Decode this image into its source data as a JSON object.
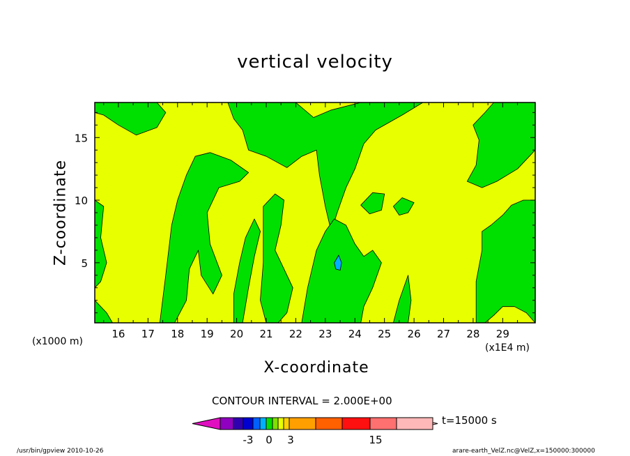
{
  "chart_data": {
    "type": "heatmap",
    "title": "vertical velocity",
    "xlabel": "X-coordinate",
    "ylabel": "Z-coordinate",
    "x_unit_left": "(x1000 m)",
    "x_unit_right": "(x1E4 m)",
    "xlim": [
      15.2,
      30.1
    ],
    "ylim": [
      0.2,
      17.8
    ],
    "x_ticks": [
      16,
      17,
      18,
      19,
      20,
      21,
      22,
      23,
      24,
      25,
      26,
      27,
      28,
      29
    ],
    "y_ticks": [
      5,
      10,
      15
    ],
    "contour_interval": "CONTOUR INTERVAL = 2.000E+00",
    "time_label": "t=15000 s",
    "colorbar": {
      "labels": [
        {
          "text": "-3",
          "level": -3
        },
        {
          "text": "0",
          "level": 0
        },
        {
          "text": "3",
          "level": 3
        },
        {
          "text": "15",
          "level": 15
        }
      ],
      "bins": [
        {
          "color": "#9000c0"
        },
        {
          "color": "#3000b0"
        },
        {
          "color": "#0000d0"
        },
        {
          "color": "#0060ff"
        },
        {
          "color": "#00b0ff"
        },
        {
          "color": "#00e000"
        },
        {
          "color": "#80e000"
        },
        {
          "color": "#e8ff00"
        },
        {
          "color": "#ffd000"
        },
        {
          "color": "#ffa000"
        },
        {
          "color": "#ff6000"
        },
        {
          "color": "#ff1010"
        },
        {
          "color": "#ff7070"
        },
        {
          "color": "#ffb8b8"
        }
      ],
      "left_arrow_color": "#e010c0",
      "right_arrow_color": "#ffd8d8"
    },
    "fields": {
      "background_color": "#e8ff00",
      "positive_color": "#00e000",
      "updraft_color": "#00b0ff",
      "downdraft_color": "#ffd000"
    },
    "green_regions": [
      [
        [
          15.2,
          17.8
        ],
        [
          17.3,
          17.8
        ],
        [
          17.6,
          17.0
        ],
        [
          17.3,
          15.8
        ],
        [
          16.6,
          15.2
        ],
        [
          16.0,
          16.0
        ],
        [
          15.5,
          16.8
        ],
        [
          15.2,
          17.0
        ]
      ],
      [
        [
          19.7,
          17.8
        ],
        [
          22.0,
          17.8
        ],
        [
          22.6,
          16.6
        ],
        [
          23.2,
          17.2
        ],
        [
          24.2,
          17.8
        ],
        [
          26.3,
          17.8
        ],
        [
          25.6,
          16.8
        ],
        [
          24.7,
          15.6
        ],
        [
          24.3,
          14.5
        ],
        [
          24.0,
          12.5
        ],
        [
          23.7,
          11.0
        ],
        [
          23.4,
          9.0
        ],
        [
          23.2,
          7.5
        ],
        [
          23.0,
          9.5
        ],
        [
          22.8,
          12.0
        ],
        [
          22.7,
          14.0
        ],
        [
          22.2,
          13.5
        ],
        [
          21.7,
          12.6
        ],
        [
          21.0,
          13.5
        ],
        [
          20.4,
          14.0
        ],
        [
          20.2,
          15.6
        ],
        [
          19.9,
          16.5
        ]
      ],
      [
        [
          15.2,
          10.0
        ],
        [
          15.5,
          9.5
        ],
        [
          15.4,
          7.0
        ],
        [
          15.6,
          5.0
        ],
        [
          15.4,
          3.5
        ],
        [
          15.2,
          3.0
        ]
      ],
      [
        [
          15.2,
          2.0
        ],
        [
          15.6,
          1.0
        ],
        [
          15.8,
          0.2
        ],
        [
          15.2,
          0.2
        ]
      ],
      [
        [
          17.4,
          0.2
        ],
        [
          17.6,
          4.0
        ],
        [
          17.8,
          8.0
        ],
        [
          18.0,
          10.0
        ],
        [
          18.3,
          12.0
        ],
        [
          18.6,
          13.5
        ],
        [
          19.1,
          13.8
        ],
        [
          19.8,
          13.2
        ],
        [
          20.4,
          12.2
        ],
        [
          20.1,
          11.5
        ],
        [
          19.4,
          11.0
        ],
        [
          19.0,
          9.0
        ],
        [
          19.1,
          6.5
        ],
        [
          19.5,
          4.0
        ],
        [
          19.2,
          2.5
        ],
        [
          18.8,
          4.0
        ],
        [
          18.7,
          6.0
        ],
        [
          18.4,
          4.5
        ],
        [
          18.3,
          2.0
        ],
        [
          17.9,
          0.2
        ]
      ],
      [
        [
          20.1,
          5.0
        ],
        [
          20.3,
          7.0
        ],
        [
          20.6,
          8.5
        ],
        [
          20.8,
          7.5
        ],
        [
          20.6,
          5.5
        ],
        [
          20.4,
          3.0
        ],
        [
          20.2,
          0.2
        ],
        [
          19.9,
          0.2
        ],
        [
          19.9,
          2.5
        ]
      ],
      [
        [
          20.9,
          9.5
        ],
        [
          21.3,
          10.5
        ],
        [
          21.6,
          10.0
        ],
        [
          21.5,
          8.0
        ],
        [
          21.3,
          6.0
        ],
        [
          21.6,
          4.5
        ],
        [
          21.9,
          3.0
        ],
        [
          21.7,
          1.0
        ],
        [
          21.4,
          0.2
        ],
        [
          21.0,
          0.2
        ],
        [
          20.8,
          2.0
        ],
        [
          20.9,
          5.0
        ]
      ],
      [
        [
          22.2,
          0.2
        ],
        [
          22.4,
          3.0
        ],
        [
          22.7,
          6.0
        ],
        [
          23.0,
          7.5
        ],
        [
          23.3,
          8.5
        ],
        [
          23.7,
          8.0
        ],
        [
          24.0,
          6.5
        ],
        [
          24.3,
          5.5
        ],
        [
          24.6,
          6.0
        ],
        [
          24.9,
          5.0
        ],
        [
          24.6,
          3.0
        ],
        [
          24.3,
          1.5
        ],
        [
          24.2,
          0.2
        ]
      ],
      [
        [
          25.3,
          0.2
        ],
        [
          25.5,
          2.0
        ],
        [
          25.8,
          4.0
        ],
        [
          25.9,
          2.0
        ],
        [
          25.8,
          0.2
        ]
      ],
      [
        [
          24.2,
          9.6
        ],
        [
          24.6,
          10.6
        ],
        [
          25.0,
          10.5
        ],
        [
          24.9,
          9.2
        ],
        [
          24.5,
          8.9
        ]
      ],
      [
        [
          25.3,
          9.5
        ],
        [
          25.6,
          10.2
        ],
        [
          26.0,
          9.8
        ],
        [
          25.8,
          9.0
        ],
        [
          25.5,
          8.8
        ]
      ],
      [
        [
          28.1,
          0.2
        ],
        [
          28.1,
          3.5
        ],
        [
          28.3,
          6.0
        ],
        [
          28.3,
          7.5
        ],
        [
          28.6,
          8.0
        ],
        [
          29.0,
          8.8
        ],
        [
          29.3,
          9.6
        ],
        [
          29.7,
          10.0
        ],
        [
          30.1,
          10.0
        ],
        [
          30.1,
          0.2
        ],
        [
          29.8,
          1.0
        ],
        [
          29.4,
          1.5
        ],
        [
          29.0,
          1.5
        ],
        [
          28.7,
          0.8
        ],
        [
          28.4,
          0.2
        ]
      ],
      [
        [
          27.8,
          11.5
        ],
        [
          28.1,
          12.8
        ],
        [
          28.2,
          14.8
        ],
        [
          28.0,
          16.0
        ],
        [
          28.4,
          17.0
        ],
        [
          28.7,
          17.8
        ],
        [
          30.1,
          17.8
        ],
        [
          30.1,
          14.0
        ],
        [
          29.5,
          12.5
        ],
        [
          28.8,
          11.5
        ],
        [
          28.3,
          11.0
        ]
      ]
    ],
    "blue_regions": [
      [
        [
          23.3,
          5.0
        ],
        [
          23.45,
          5.6
        ],
        [
          23.55,
          5.0
        ],
        [
          23.5,
          4.4
        ],
        [
          23.35,
          4.5
        ]
      ]
    ]
  },
  "footer": {
    "left": "/usr/bin/gpview 2010-10-26",
    "right": "arare-earth_VelZ.nc@VelZ,x=150000:300000"
  }
}
